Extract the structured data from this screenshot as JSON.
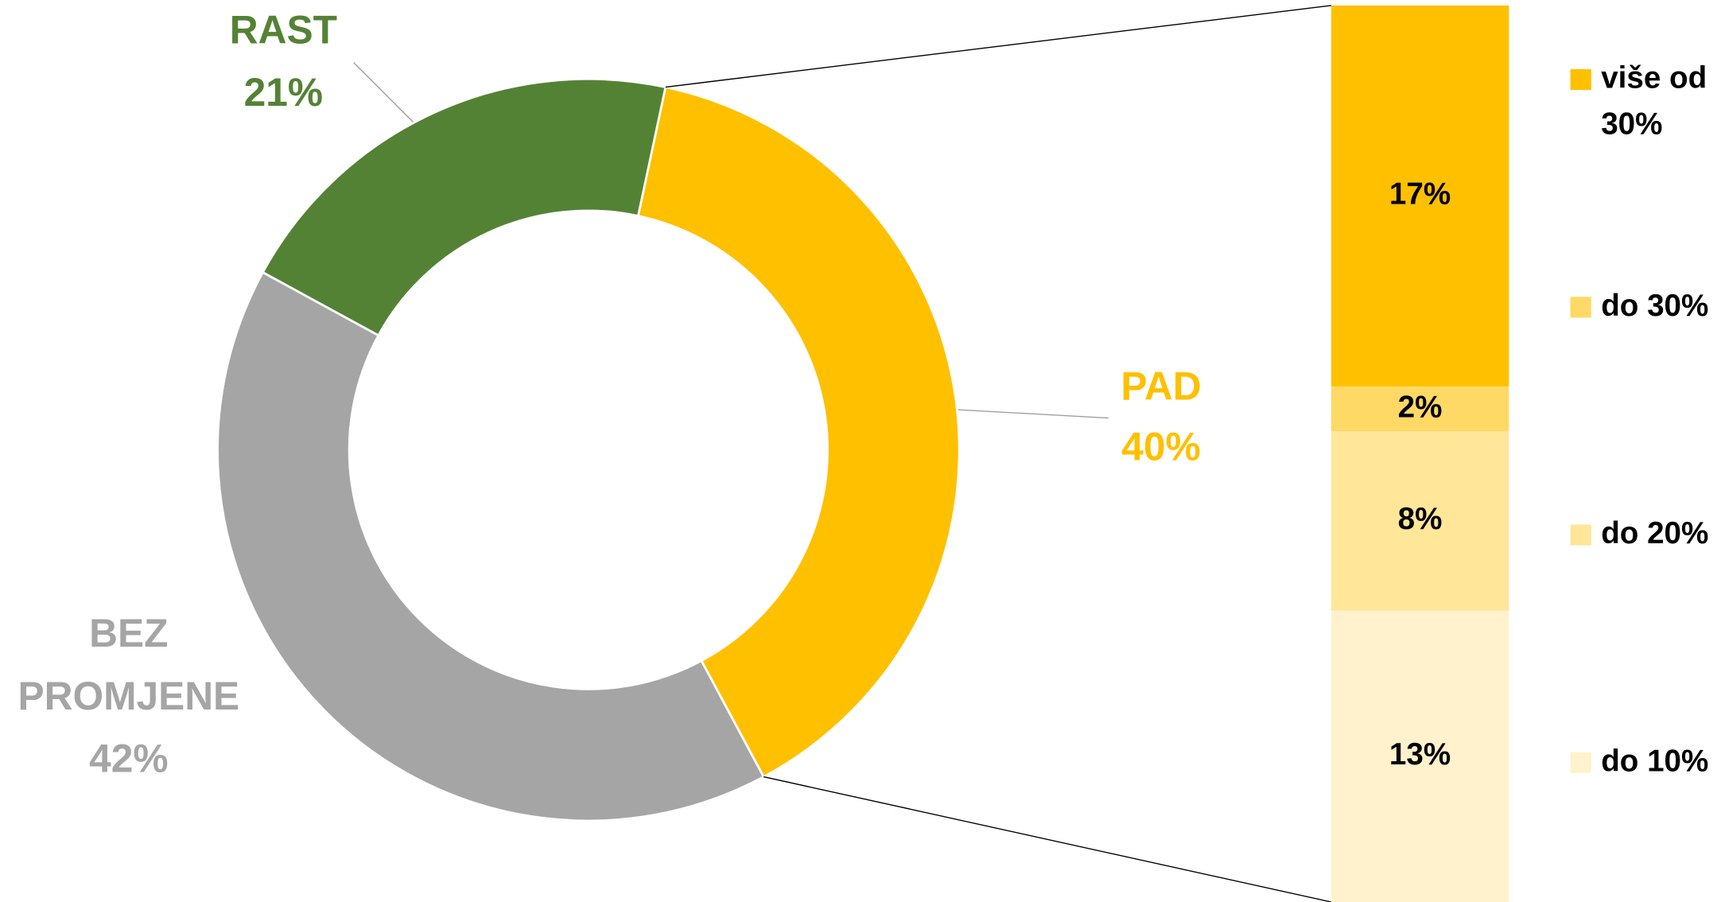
{
  "chart_data": [
    {
      "type": "pie",
      "donut": true,
      "categories": [
        "RAST",
        "PAD",
        "BEZ PROMJENE"
      ],
      "values": [
        21,
        40,
        42
      ],
      "value_labels": [
        "21%",
        "40%",
        "42%"
      ],
      "colors": [
        "#548235",
        "#ffc000",
        "#a5a5a5"
      ]
    },
    {
      "type": "bar",
      "stacked": true,
      "series": [
        {
          "name": "više od 30%",
          "color": "#ffc000",
          "values": [
            17
          ],
          "value_labels": [
            "17%"
          ]
        },
        {
          "name": "do 30%",
          "color": "#ffd966",
          "values": [
            2
          ],
          "value_labels": [
            "2%"
          ]
        },
        {
          "name": "do 20%",
          "color": "#ffe699",
          "values": [
            8
          ],
          "value_labels": [
            "8%"
          ]
        },
        {
          "name": "do 10%",
          "color": "#fff2cc",
          "values": [
            13
          ],
          "value_labels": [
            "13%"
          ]
        }
      ]
    }
  ]
}
